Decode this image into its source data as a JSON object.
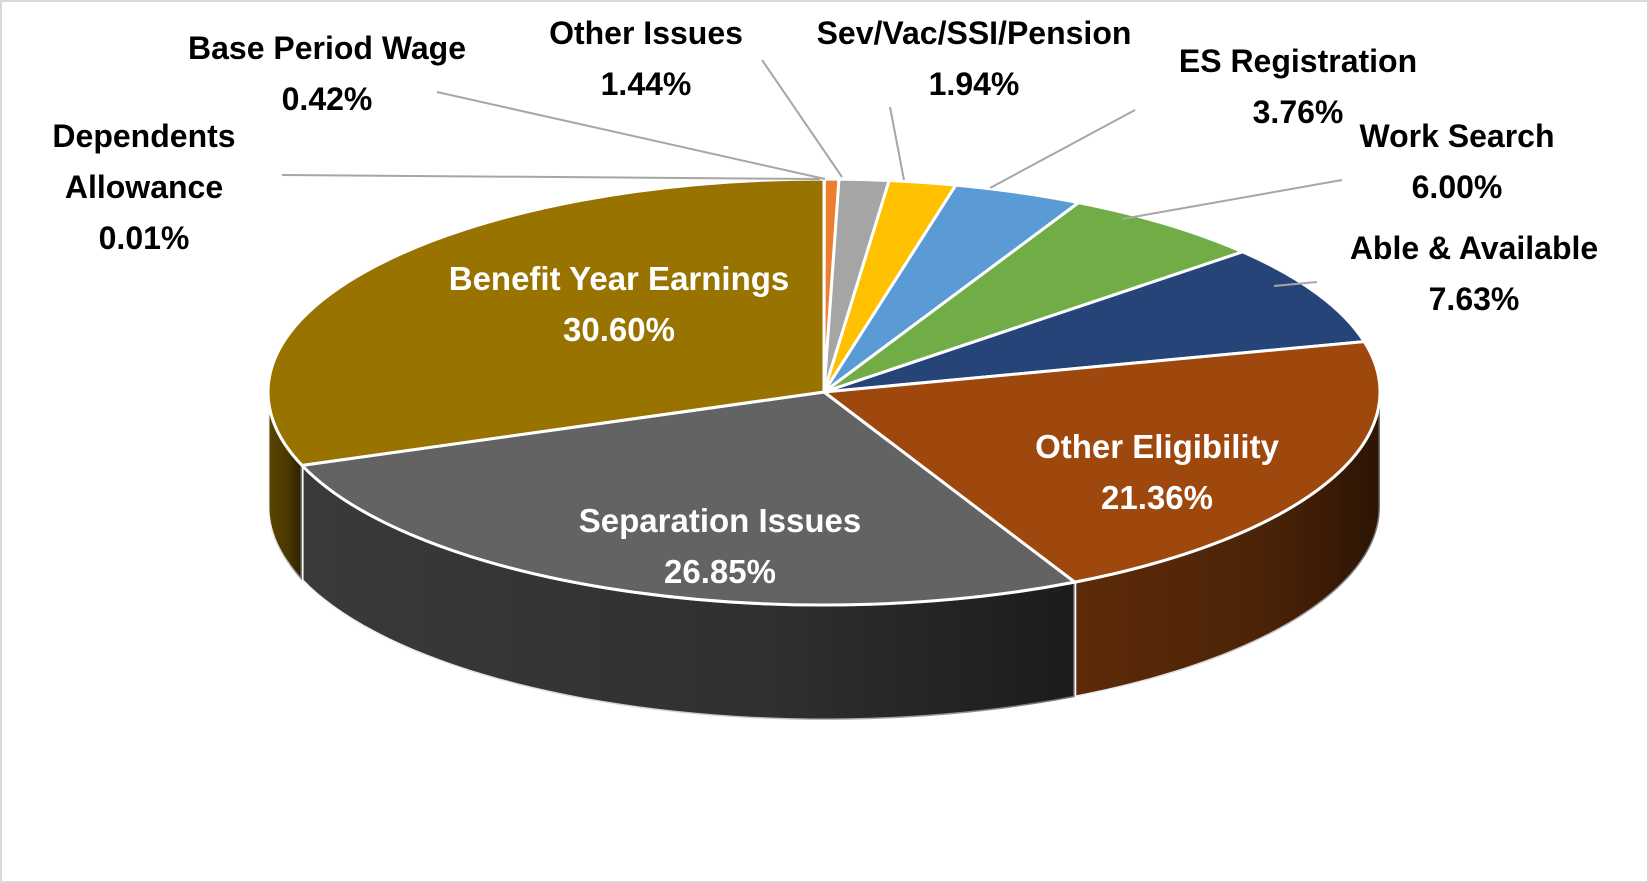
{
  "chart_data": {
    "type": "pie",
    "style": "3d",
    "title": "",
    "slices": [
      {
        "label": "Dependents Allowance",
        "label_lines": [
          "Dependents",
          "Allowance"
        ],
        "value": 0.01,
        "value_text": "0.01%",
        "color": "#2f3a5c",
        "label_inside": false
      },
      {
        "label": "Base Period Wage",
        "label_lines": [
          "Base Period Wage"
        ],
        "value": 0.42,
        "value_text": "0.42%",
        "color": "#ed7d31",
        "label_inside": false
      },
      {
        "label": "Other Issues",
        "label_lines": [
          "Other Issues"
        ],
        "value": 1.44,
        "value_text": "1.44%",
        "color": "#a5a5a5",
        "label_inside": false
      },
      {
        "label": "Sev/Vac/SSI/Pension",
        "label_lines": [
          "Sev/Vac/SSI/Pension"
        ],
        "value": 1.94,
        "value_text": "1.94%",
        "color": "#ffc000",
        "label_inside": false
      },
      {
        "label": "ES Registration",
        "label_lines": [
          "ES Registration"
        ],
        "value": 3.76,
        "value_text": "3.76%",
        "color": "#5b9bd5",
        "label_inside": false
      },
      {
        "label": "Work Search",
        "label_lines": [
          "Work Search"
        ],
        "value": 6.0,
        "value_text": "6.00%",
        "color": "#70ad47",
        "label_inside": false
      },
      {
        "label": "Able & Available",
        "label_lines": [
          "Able & Available"
        ],
        "value": 7.63,
        "value_text": "7.63%",
        "color": "#264478",
        "label_inside": false
      },
      {
        "label": "Other Eligibility",
        "label_lines": [
          "Other Eligibility"
        ],
        "value": 21.36,
        "value_text": "21.36%",
        "color": "#9e480e",
        "label_inside": true
      },
      {
        "label": "Separation Issues",
        "label_lines": [
          "Separation Issues"
        ],
        "value": 26.85,
        "value_text": "26.85%",
        "color": "#636363",
        "label_inside": true
      },
      {
        "label": "Benefit Year Earnings",
        "label_lines": [
          "Benefit Year Earnings"
        ],
        "value": 30.6,
        "value_text": "30.60%",
        "color": "#997300",
        "label_inside": true
      }
    ]
  }
}
